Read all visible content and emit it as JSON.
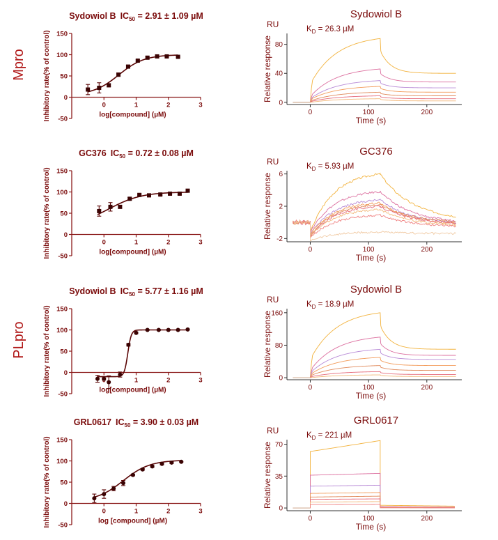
{
  "row_labels": [
    {
      "text": "Mpro",
      "row": 0
    },
    {
      "text": "PLpro",
      "row": 2
    }
  ],
  "colors": {
    "text": "#7a0a0a",
    "row_label": "#b01818",
    "axis": "#8b1a1a",
    "spr_axis": "#333333",
    "spr_palette": [
      "#f2b23c",
      "#dc6f9f",
      "#b88ad6",
      "#f29a58",
      "#e0895a",
      "#e56a7a",
      "#f2b87a",
      "#ef7f7f",
      "#f0c9a2",
      "#eec07a",
      "#e8a8a8"
    ]
  },
  "chart_data": [
    {
      "type": "scatter",
      "panel": "ic50",
      "row": 0,
      "title_name": "Sydowiol B",
      "ic50_label": "IC",
      "ic50_sub": "50",
      "ic50_value": " = 2.91 ± 1.09 µM",
      "xlabel": "log[compound] (µM)",
      "ylabel": "Inhibitory rate(% of control)",
      "xlim": [
        -1,
        3
      ],
      "ylim": [
        -50,
        150
      ],
      "xticks": [
        0,
        1,
        2,
        3
      ],
      "xtick_labels": [
        "0",
        "1",
        "2",
        "3"
      ],
      "yticks": [
        -50,
        0,
        50,
        100,
        150
      ],
      "ytick_labels": [
        "-50",
        "0",
        "50",
        "100",
        "150"
      ],
      "marker": "square",
      "points": [
        {
          "x": -0.5,
          "y": 18,
          "err": 12
        },
        {
          "x": -0.15,
          "y": 22,
          "err": 12
        },
        {
          "x": 0.15,
          "y": 28,
          "err": 3
        },
        {
          "x": 0.45,
          "y": 53,
          "err": 4
        },
        {
          "x": 0.75,
          "y": 72,
          "err": 3
        },
        {
          "x": 1.05,
          "y": 86,
          "err": 2
        },
        {
          "x": 1.35,
          "y": 93,
          "err": 2
        },
        {
          "x": 1.65,
          "y": 96,
          "err": 2
        },
        {
          "x": 1.95,
          "y": 96,
          "err": 1
        },
        {
          "x": 2.3,
          "y": 95,
          "err": 1
        }
      ],
      "fit": {
        "bottom": 5,
        "top": 100,
        "logIC50": 0.46,
        "hill": 1.1,
        "x": [
          -0.5,
          2.3
        ]
      }
    },
    {
      "type": "scatter",
      "panel": "ic50",
      "row": 1,
      "title_name": "GC376",
      "ic50_label": "IC",
      "ic50_sub": "50",
      "ic50_value": " = 0.72 ± 0.08 µM",
      "xlabel": "log[compound] (µM)",
      "ylabel": "Inhibitory rate(% of control)",
      "xlim": [
        -1,
        3
      ],
      "ylim": [
        -50,
        150
      ],
      "xticks": [
        0,
        1,
        2,
        3
      ],
      "xtick_labels": [
        "0",
        "1",
        "2",
        "3"
      ],
      "yticks": [
        -50,
        0,
        50,
        100,
        150
      ],
      "ytick_labels": [
        "-50",
        "0",
        "50",
        "100",
        "150"
      ],
      "marker": "square",
      "points": [
        {
          "x": -0.15,
          "y": 55,
          "err": 12
        },
        {
          "x": 0.2,
          "y": 65,
          "err": 10
        },
        {
          "x": 0.5,
          "y": 65,
          "err": 3
        },
        {
          "x": 0.8,
          "y": 84,
          "err": 3
        },
        {
          "x": 1.1,
          "y": 93,
          "err": 2
        },
        {
          "x": 1.4,
          "y": 92,
          "err": 2
        },
        {
          "x": 1.75,
          "y": 94,
          "err": 2
        },
        {
          "x": 2.05,
          "y": 96,
          "err": 2
        },
        {
          "x": 2.35,
          "y": 96,
          "err": 2
        },
        {
          "x": 2.6,
          "y": 103,
          "err": 2
        }
      ],
      "fit": {
        "bottom": 20,
        "top": 100,
        "logIC50": 0.15,
        "hill": 0.85,
        "x": [
          -0.2,
          2.6
        ]
      }
    },
    {
      "type": "scatter",
      "panel": "ic50",
      "row": 2,
      "title_name": "Sydowiol B",
      "ic50_label": "IC",
      "ic50_sub": "50",
      "ic50_value": " = 5.77 ± 1.16 µM",
      "xlabel": "log[compound] (µM)",
      "ylabel": "Inhibitory rate(% of control)",
      "xlim": [
        -1,
        3
      ],
      "ylim": [
        -50,
        150
      ],
      "xticks": [
        0,
        1,
        2,
        3
      ],
      "xtick_labels": [
        "0",
        "1",
        "2",
        "3"
      ],
      "yticks": [
        -50,
        0,
        50,
        100,
        150
      ],
      "ytick_labels": [
        "-50",
        "0",
        "50",
        "100",
        "150"
      ],
      "marker": "circle",
      "points": [
        {
          "x": -0.2,
          "y": -15,
          "err": 8
        },
        {
          "x": 0.0,
          "y": -15,
          "err": 2
        },
        {
          "x": 0.15,
          "y": -23,
          "err": 15
        },
        {
          "x": 0.5,
          "y": -5,
          "err": 6
        },
        {
          "x": 0.76,
          "y": 65,
          "err": 3
        },
        {
          "x": 1.0,
          "y": 93,
          "err": 2
        },
        {
          "x": 1.35,
          "y": 100,
          "err": 1
        },
        {
          "x": 1.7,
          "y": 100,
          "err": 1
        },
        {
          "x": 2.0,
          "y": 100,
          "err": 1
        },
        {
          "x": 2.3,
          "y": 100,
          "err": 1
        },
        {
          "x": 2.6,
          "y": 101,
          "err": 1
        }
      ],
      "fit": {
        "bottom": -10,
        "top": 100,
        "logIC50": 0.74,
        "hill": 8,
        "x": [
          -0.2,
          2.6
        ]
      }
    },
    {
      "type": "scatter",
      "panel": "ic50",
      "row": 3,
      "title_name": "GRL0617",
      "ic50_label": "IC",
      "ic50_sub": "50",
      "ic50_value": " = 3.90 ± 0.03 µM",
      "xlabel": "log [compound]  (µM)",
      "ylabel": "Inhibitory rate(% of control)",
      "xlim": [
        -1,
        3
      ],
      "ylim": [
        -50,
        150
      ],
      "xticks": [
        0,
        1,
        2,
        3
      ],
      "xtick_labels": [
        "0",
        "1",
        "2",
        "3"
      ],
      "yticks": [
        -50,
        0,
        50,
        100,
        150
      ],
      "ytick_labels": [
        "-50",
        "0",
        "50",
        "100",
        "150"
      ],
      "marker": "circle",
      "points": [
        {
          "x": -0.3,
          "y": 12,
          "err": 10
        },
        {
          "x": 0.0,
          "y": 22,
          "err": 10
        },
        {
          "x": 0.3,
          "y": 35,
          "err": 5
        },
        {
          "x": 0.6,
          "y": 48,
          "err": 6
        },
        {
          "x": 0.9,
          "y": 67,
          "err": 2
        },
        {
          "x": 1.2,
          "y": 80,
          "err": 2
        },
        {
          "x": 1.5,
          "y": 87,
          "err": 2
        },
        {
          "x": 1.8,
          "y": 93,
          "err": 2
        },
        {
          "x": 2.1,
          "y": 96,
          "err": 2
        },
        {
          "x": 2.4,
          "y": 98,
          "err": 1
        }
      ],
      "fit": {
        "bottom": 5,
        "top": 102,
        "logIC50": 0.6,
        "hill": 1.05,
        "x": [
          -0.3,
          2.4
        ]
      }
    },
    {
      "type": "line",
      "panel": "spr",
      "row": 0,
      "title": "Sydowiol B",
      "kd_label": "K",
      "kd_sub": "D",
      "kd_value": " = 26.3 µM",
      "unit_label": "RU",
      "xlabel": "Time (s)",
      "ylabel": "Relative response",
      "xlim": [
        -40,
        260
      ],
      "ylim": [
        -3,
        95
      ],
      "xticks": [
        0,
        100,
        200
      ],
      "xtick_labels": [
        "0",
        "100",
        "200"
      ],
      "yticks": [
        0,
        40,
        80
      ],
      "ytick_labels": [
        "0",
        "40",
        "80"
      ],
      "assoc_end": 120,
      "curves": [
        {
          "peak": 88,
          "plateau": 40,
          "jump": 25
        },
        {
          "peak": 46,
          "plateau": 28,
          "jump": 8
        },
        {
          "peak": 30,
          "plateau": 20,
          "jump": 5
        },
        {
          "peak": 22,
          "plateau": 14,
          "jump": 4
        },
        {
          "peak": 14,
          "plateau": 9,
          "jump": 2
        },
        {
          "peak": 9,
          "plateau": 5,
          "jump": 1
        },
        {
          "peak": 5,
          "plateau": 2,
          "jump": 0
        }
      ]
    },
    {
      "type": "line",
      "panel": "spr",
      "row": 1,
      "title": "GC376",
      "kd_label": "K",
      "kd_sub": "D",
      "kd_value": " = 5.93 µM",
      "unit_label": "RU",
      "xlabel": "Time (s)",
      "ylabel": "Relative response",
      "xlim": [
        -40,
        260
      ],
      "ylim": [
        -2.4,
        6.4
      ],
      "xticks": [
        0,
        100,
        200
      ],
      "xtick_labels": [
        "0",
        "100",
        "200"
      ],
      "yticks": [
        -2,
        2,
        6
      ],
      "ytick_labels": [
        "-2",
        "2",
        "6"
      ],
      "assoc_end": 120,
      "noisy": true,
      "curves": [
        {
          "start": -1.2,
          "peak": 6.0,
          "end": 0.2
        },
        {
          "start": -1.2,
          "peak": 3.8,
          "end": -0.2
        },
        {
          "start": -1.5,
          "peak": 2.8,
          "end": -0.3
        },
        {
          "start": -1.5,
          "peak": 2.4,
          "end": -0.4
        },
        {
          "start": -1.7,
          "peak": 2.2,
          "end": -0.1
        },
        {
          "start": -1.8,
          "peak": 2.0,
          "end": -0.3
        },
        {
          "start": -1.8,
          "peak": 1.6,
          "end": -0.5
        },
        {
          "start": -1.9,
          "peak": 0.9,
          "end": -0.6
        },
        {
          "start": -2.2,
          "peak": -1.2,
          "end": -1.4
        }
      ]
    },
    {
      "type": "line",
      "panel": "spr",
      "row": 2,
      "title": "Sydowiol B",
      "kd_label": "K",
      "kd_sub": "D",
      "kd_value": " = 18.9 µM",
      "unit_label": "RU",
      "xlabel": "Time (s)",
      "ylabel": "Relative response",
      "xlim": [
        -40,
        260
      ],
      "ylim": [
        -5,
        170
      ],
      "xticks": [
        0,
        100,
        200
      ],
      "xtick_labels": [
        "0",
        "100",
        "200"
      ],
      "yticks": [
        0,
        80,
        160
      ],
      "ytick_labels": [
        "0",
        "80",
        "160"
      ],
      "assoc_end": 120,
      "curves": [
        {
          "peak": 160,
          "plateau": 70,
          "jump": 45
        },
        {
          "peak": 100,
          "plateau": 55,
          "jump": 18
        },
        {
          "peak": 70,
          "plateau": 45,
          "jump": 12
        },
        {
          "peak": 50,
          "plateau": 30,
          "jump": 8
        },
        {
          "peak": 30,
          "plateau": 18,
          "jump": 5
        },
        {
          "peak": 15,
          "plateau": 8,
          "jump": 2
        },
        {
          "peak": 7,
          "plateau": 3,
          "jump": 0
        }
      ]
    },
    {
      "type": "line",
      "panel": "spr",
      "row": 3,
      "title": "GRL0617",
      "kd_label": "K",
      "kd_sub": "D",
      "kd_value": " = 221 µM",
      "unit_label": "RU",
      "xlabel": "Time (s)",
      "ylabel": "Relative response",
      "xlim": [
        -40,
        260
      ],
      "ylim": [
        -3,
        75
      ],
      "xticks": [
        0,
        100,
        200
      ],
      "xtick_labels": [
        "0",
        "100",
        "200"
      ],
      "yticks": [
        0,
        35,
        70
      ],
      "ytick_labels": [
        "0",
        "35",
        "70"
      ],
      "assoc_end": 120,
      "square": true,
      "curves": [
        {
          "peak": 74,
          "plateau": 3,
          "jump": 62
        },
        {
          "peak": 38,
          "plateau": 1.5,
          "jump": 36
        },
        {
          "peak": 25,
          "plateau": 1,
          "jump": 24
        },
        {
          "peak": 17,
          "plateau": 0.8,
          "jump": 16
        },
        {
          "peak": 13,
          "plateau": 0.6,
          "jump": 12
        },
        {
          "peak": 10,
          "plateau": 0.5,
          "jump": 9.5
        },
        {
          "peak": 7,
          "plateau": 0.3,
          "jump": 6.5
        },
        {
          "peak": 4,
          "plateau": 0.2,
          "jump": 3.8
        }
      ]
    }
  ]
}
